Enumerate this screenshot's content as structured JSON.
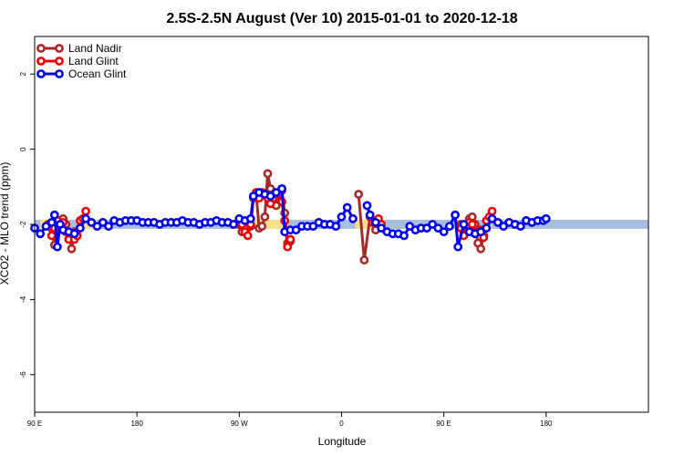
{
  "chart_data": {
    "type": "line",
    "title": "2.5S-2.5N August (Ver 10)   2015-01-01 to 2020-12-18",
    "xlabel": "Longitude",
    "ylabel": "XCO2 - MLO trend (ppm)",
    "xlim": [
      0,
      540
    ],
    "ylim": [
      -7,
      3
    ],
    "x_ticks": [
      {
        "value": 0,
        "label": "90 E"
      },
      {
        "value": 90,
        "label": "180"
      },
      {
        "value": 180,
        "label": "90 W"
      },
      {
        "value": 270,
        "label": "0"
      },
      {
        "value": 360,
        "label": "90 E"
      },
      {
        "value": 450,
        "label": "180"
      }
    ],
    "y_ticks": [
      {
        "value": 2,
        "label": "2"
      },
      {
        "value": 0,
        "label": "0"
      },
      {
        "value": -2,
        "label": "-2"
      },
      {
        "value": -4,
        "label": "-4"
      },
      {
        "value": -6,
        "label": "-6"
      }
    ],
    "legend_position": "top-left",
    "bands": [
      {
        "color": "#a8bee0",
        "x": [
          0,
          540
        ],
        "y": [
          -2.12,
          -1.88
        ]
      },
      {
        "color": "#fde08a",
        "x": [
          5,
          15
        ],
        "y": [
          -2.12,
          -1.88
        ]
      },
      {
        "color": "#fde08a",
        "x": [
          40,
          55
        ],
        "y": [
          -2.12,
          -1.88
        ]
      },
      {
        "color": "#fde08a",
        "x": [
          193,
          223
        ],
        "y": [
          -2.12,
          -1.88
        ]
      },
      {
        "color": "#fde08a",
        "x": [
          282,
          300
        ],
        "y": [
          -2.12,
          -1.88
        ]
      },
      {
        "color": "#fde08a",
        "x": [
          372,
          385
        ],
        "y": [
          -2.12,
          -1.88
        ]
      },
      {
        "color": "#fde08a",
        "x": [
          395,
          402
        ],
        "y": [
          -2.12,
          -1.88
        ]
      }
    ],
    "series": [
      {
        "name": "Land Nadir",
        "color": "#a52a2a",
        "segments": [
          [
            [
              12,
              -2.0
            ],
            [
              15,
              -2.1
            ],
            [
              17.5,
              -2.55
            ],
            [
              20,
              -2.1
            ],
            [
              22.5,
              -1.9
            ],
            [
              25,
              -1.85
            ],
            [
              27.5,
              -2.0
            ],
            [
              30,
              -2.2
            ],
            [
              32.5,
              -2.65
            ],
            [
              35,
              -2.2
            ]
          ],
          [
            [
              180,
              -2.0
            ],
            [
              182.5,
              -2.2
            ],
            [
              185,
              -2.05
            ],
            [
              187.5,
              -1.95
            ],
            [
              190,
              -2.05
            ],
            [
              192.5,
              -1.3
            ],
            [
              195,
              -1.2
            ],
            [
              197.5,
              -2.1
            ],
            [
              200,
              -2.05
            ],
            [
              202.5,
              -1.8
            ],
            [
              205,
              -0.65
            ],
            [
              207.5,
              -1.05
            ],
            [
              210,
              -1.2
            ],
            [
              212.5,
              -1.5
            ],
            [
              215,
              -1.2
            ],
            [
              217.5,
              -1.1
            ],
            [
              220,
              -1.7
            ],
            [
              222.5,
              -2.5
            ],
            [
              225,
              -2.45
            ]
          ],
          [
            [
              285,
              -1.2
            ],
            [
              290,
              -2.95
            ],
            [
              295,
              -1.8
            ],
            [
              297.5,
              -1.95
            ],
            [
              300,
              -2.15
            ]
          ],
          [
            [
              375,
              -2.0
            ],
            [
              377.5,
              -2.2
            ],
            [
              380,
              -2.05
            ],
            [
              382.5,
              -1.85
            ],
            [
              385,
              -1.8
            ],
            [
              387.5,
              -2.0
            ],
            [
              390,
              -2.5
            ],
            [
              392.5,
              -2.65
            ],
            [
              395,
              -2.3
            ]
          ]
        ]
      },
      {
        "name": "Land Glint",
        "color": "#ee0000",
        "segments": [
          [
            [
              12,
              -2.0
            ],
            [
              15,
              -2.3
            ],
            [
              17.5,
              -2.1
            ],
            [
              20,
              -1.9
            ],
            [
              22.5,
              -2.0
            ],
            [
              25,
              -1.95
            ],
            [
              27.5,
              -2.2
            ],
            [
              30,
              -2.4
            ],
            [
              32.5,
              -2.25
            ],
            [
              35,
              -2.4
            ],
            [
              37.5,
              -2.3
            ],
            [
              40,
              -1.9
            ],
            [
              42.5,
              -1.85
            ],
            [
              45,
              -1.65
            ]
          ],
          [
            [
              180,
              -2.0
            ],
            [
              182.5,
              -2.0
            ],
            [
              185,
              -2.2
            ],
            [
              187.5,
              -2.3
            ],
            [
              190,
              -2.0
            ],
            [
              192.5,
              -1.25
            ],
            [
              195,
              -1.15
            ],
            [
              197.5,
              -1.3
            ],
            [
              200,
              -1.15
            ],
            [
              202.5,
              -1.2
            ],
            [
              205,
              -1.3
            ],
            [
              207.5,
              -1.45
            ],
            [
              210,
              -1.3
            ],
            [
              212.5,
              -1.2
            ],
            [
              215,
              -1.15
            ],
            [
              217.5,
              -1.4
            ],
            [
              220,
              -1.9
            ],
            [
              222.5,
              -2.6
            ],
            [
              225,
              -2.4
            ]
          ],
          [
            [
              295,
              -1.75
            ],
            [
              297.5,
              -1.95
            ],
            [
              300,
              -1.9
            ],
            [
              302.5,
              -1.85
            ],
            [
              305,
              -2.0
            ]
          ],
          [
            [
              375,
              -2.1
            ],
            [
              377.5,
              -2.3
            ],
            [
              380,
              -2.05
            ],
            [
              382.5,
              -1.95
            ],
            [
              385,
              -2.0
            ],
            [
              387.5,
              -2.2
            ],
            [
              390,
              -2.2
            ],
            [
              392.5,
              -2.15
            ],
            [
              395,
              -2.35
            ],
            [
              397.5,
              -1.9
            ],
            [
              400,
              -1.8
            ],
            [
              402.5,
              -1.65
            ]
          ]
        ]
      },
      {
        "name": "Ocean Glint",
        "color": "#0000ee",
        "segments": [
          [
            [
              0,
              -2.1
            ],
            [
              5,
              -2.25
            ],
            [
              10,
              -2.05
            ],
            [
              15,
              -1.95
            ],
            [
              17.5,
              -1.75
            ],
            [
              20,
              -2.6
            ],
            [
              22.5,
              -2.0
            ],
            [
              25,
              -2.15
            ],
            [
              30,
              -2.2
            ],
            [
              35,
              -2.25
            ],
            [
              40,
              -2.1
            ],
            [
              45,
              -1.85
            ],
            [
              50,
              -1.95
            ],
            [
              55,
              -2.05
            ],
            [
              60,
              -1.95
            ],
            [
              65,
              -2.05
            ],
            [
              70,
              -1.9
            ],
            [
              75,
              -1.95
            ],
            [
              80,
              -1.9
            ],
            [
              85,
              -1.9
            ],
            [
              90,
              -1.9
            ],
            [
              95,
              -1.95
            ],
            [
              100,
              -1.95
            ],
            [
              105,
              -1.95
            ],
            [
              110,
              -2.0
            ],
            [
              115,
              -1.95
            ],
            [
              120,
              -1.95
            ],
            [
              125,
              -1.95
            ],
            [
              130,
              -1.9
            ],
            [
              135,
              -1.95
            ],
            [
              140,
              -1.95
            ],
            [
              145,
              -2.0
            ],
            [
              150,
              -1.95
            ],
            [
              155,
              -1.95
            ],
            [
              160,
              -1.9
            ],
            [
              165,
              -1.95
            ],
            [
              170,
              -1.95
            ],
            [
              175,
              -2.0
            ],
            [
              180,
              -1.85
            ],
            [
              185,
              -1.9
            ],
            [
              190,
              -1.85
            ],
            [
              192.5,
              -1.25
            ],
            [
              197.5,
              -1.15
            ],
            [
              202.5,
              -1.2
            ],
            [
              207.5,
              -1.25
            ],
            [
              212.5,
              -1.15
            ],
            [
              217.5,
              -1.05
            ],
            [
              220,
              -2.2
            ],
            [
              225,
              -2.15
            ],
            [
              230,
              -2.15
            ],
            [
              235,
              -2.05
            ],
            [
              240,
              -2.05
            ],
            [
              245,
              -2.05
            ],
            [
              250,
              -1.95
            ],
            [
              255,
              -2.0
            ],
            [
              260,
              -2.0
            ],
            [
              265,
              -2.05
            ],
            [
              270,
              -1.8
            ],
            [
              275,
              -1.55
            ],
            [
              280,
              -1.85
            ]
          ],
          [
            [
              292.5,
              -1.5
            ],
            [
              295,
              -1.75
            ],
            [
              300,
              -1.95
            ],
            [
              305,
              -2.1
            ],
            [
              310,
              -2.2
            ],
            [
              315,
              -2.25
            ],
            [
              320,
              -2.25
            ],
            [
              325,
              -2.3
            ],
            [
              330,
              -2.05
            ],
            [
              335,
              -2.15
            ],
            [
              340,
              -2.1
            ],
            [
              345,
              -2.1
            ],
            [
              350,
              -2.0
            ],
            [
              355,
              -2.1
            ],
            [
              360,
              -2.2
            ],
            [
              365,
              -2.05
            ],
            [
              370,
              -1.75
            ],
            [
              372.5,
              -2.6
            ],
            [
              377.5,
              -2.0
            ],
            [
              382.5,
              -2.2
            ],
            [
              387.5,
              -2.25
            ],
            [
              392.5,
              -2.2
            ],
            [
              397.5,
              -2.1
            ],
            [
              402.5,
              -1.85
            ],
            [
              407.5,
              -1.95
            ],
            [
              412.5,
              -2.05
            ],
            [
              417.5,
              -1.95
            ],
            [
              422.5,
              -2.0
            ],
            [
              427.5,
              -2.05
            ],
            [
              432.5,
              -1.9
            ],
            [
              437.5,
              -1.95
            ],
            [
              442.5,
              -1.9
            ],
            [
              447.5,
              -1.9
            ],
            [
              450,
              -1.85
            ]
          ]
        ]
      }
    ]
  }
}
